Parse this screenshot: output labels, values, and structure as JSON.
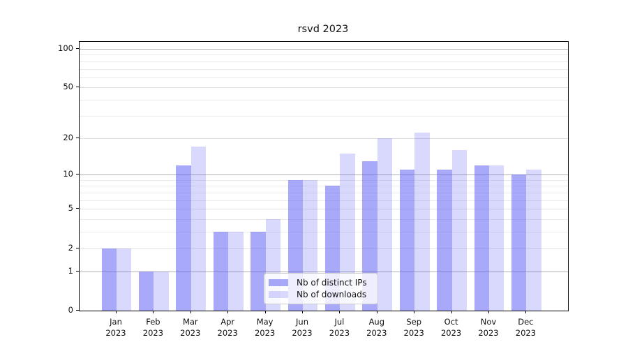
{
  "figure": {
    "background": "#ffffff"
  },
  "chart_data": {
    "type": "bar",
    "title": "rsvd 2023",
    "categories": [
      "Jan",
      "Feb",
      "Mar",
      "Apr",
      "May",
      "Jun",
      "Jul",
      "Aug",
      "Sep",
      "Oct",
      "Nov",
      "Dec"
    ],
    "category_year": "2023",
    "series": [
      {
        "name": "Nb of distinct IPs",
        "color": "#5454f4",
        "alpha": 0.5,
        "values": [
          2,
          1,
          12,
          3,
          3,
          9,
          8,
          13,
          11,
          11,
          12,
          10
        ]
      },
      {
        "name": "Nb of downloads",
        "color": "#5454f4",
        "alpha": 0.22,
        "values": [
          2,
          1,
          17,
          3,
          4,
          9,
          15,
          20,
          22,
          16,
          12,
          11
        ]
      }
    ],
    "xlabel": "",
    "ylabel": "",
    "yscale": "log1p",
    "ylim": [
      0,
      113
    ],
    "yticks": [
      0,
      1,
      2,
      5,
      10,
      20,
      50,
      100
    ],
    "major_grid_values": [
      1,
      10,
      100
    ],
    "minor_gridlines": [
      3,
      4,
      6,
      7,
      8,
      9,
      30,
      40,
      60,
      70,
      80,
      90
    ],
    "grid_color_major": "#b0b0b0",
    "grid_color_mid": "#e0e0e0",
    "grid_color_minor": "#ebebeb",
    "legend_position": "lower center",
    "grid": "on"
  }
}
